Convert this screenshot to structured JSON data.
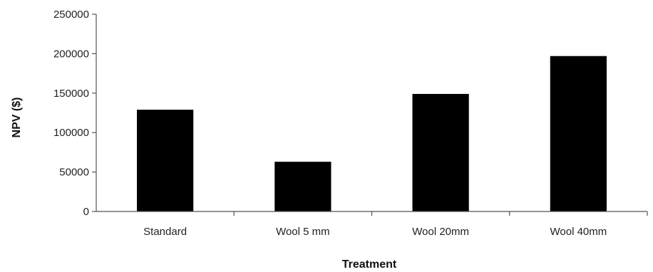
{
  "chart_data": {
    "type": "bar",
    "title": "",
    "xlabel": "Treatment",
    "ylabel": "NPV ($)",
    "categories": [
      "Standard",
      "Wool 5 mm",
      "Wool 20mm",
      "Wool 40mm"
    ],
    "values": [
      129000,
      63000,
      149000,
      197000
    ],
    "ylim": [
      0,
      250000
    ],
    "yticks": [
      "0",
      "50000",
      "100000",
      "150000",
      "200000",
      "250000"
    ],
    "grid": false,
    "legend": "none",
    "bar_color": "#000000"
  }
}
